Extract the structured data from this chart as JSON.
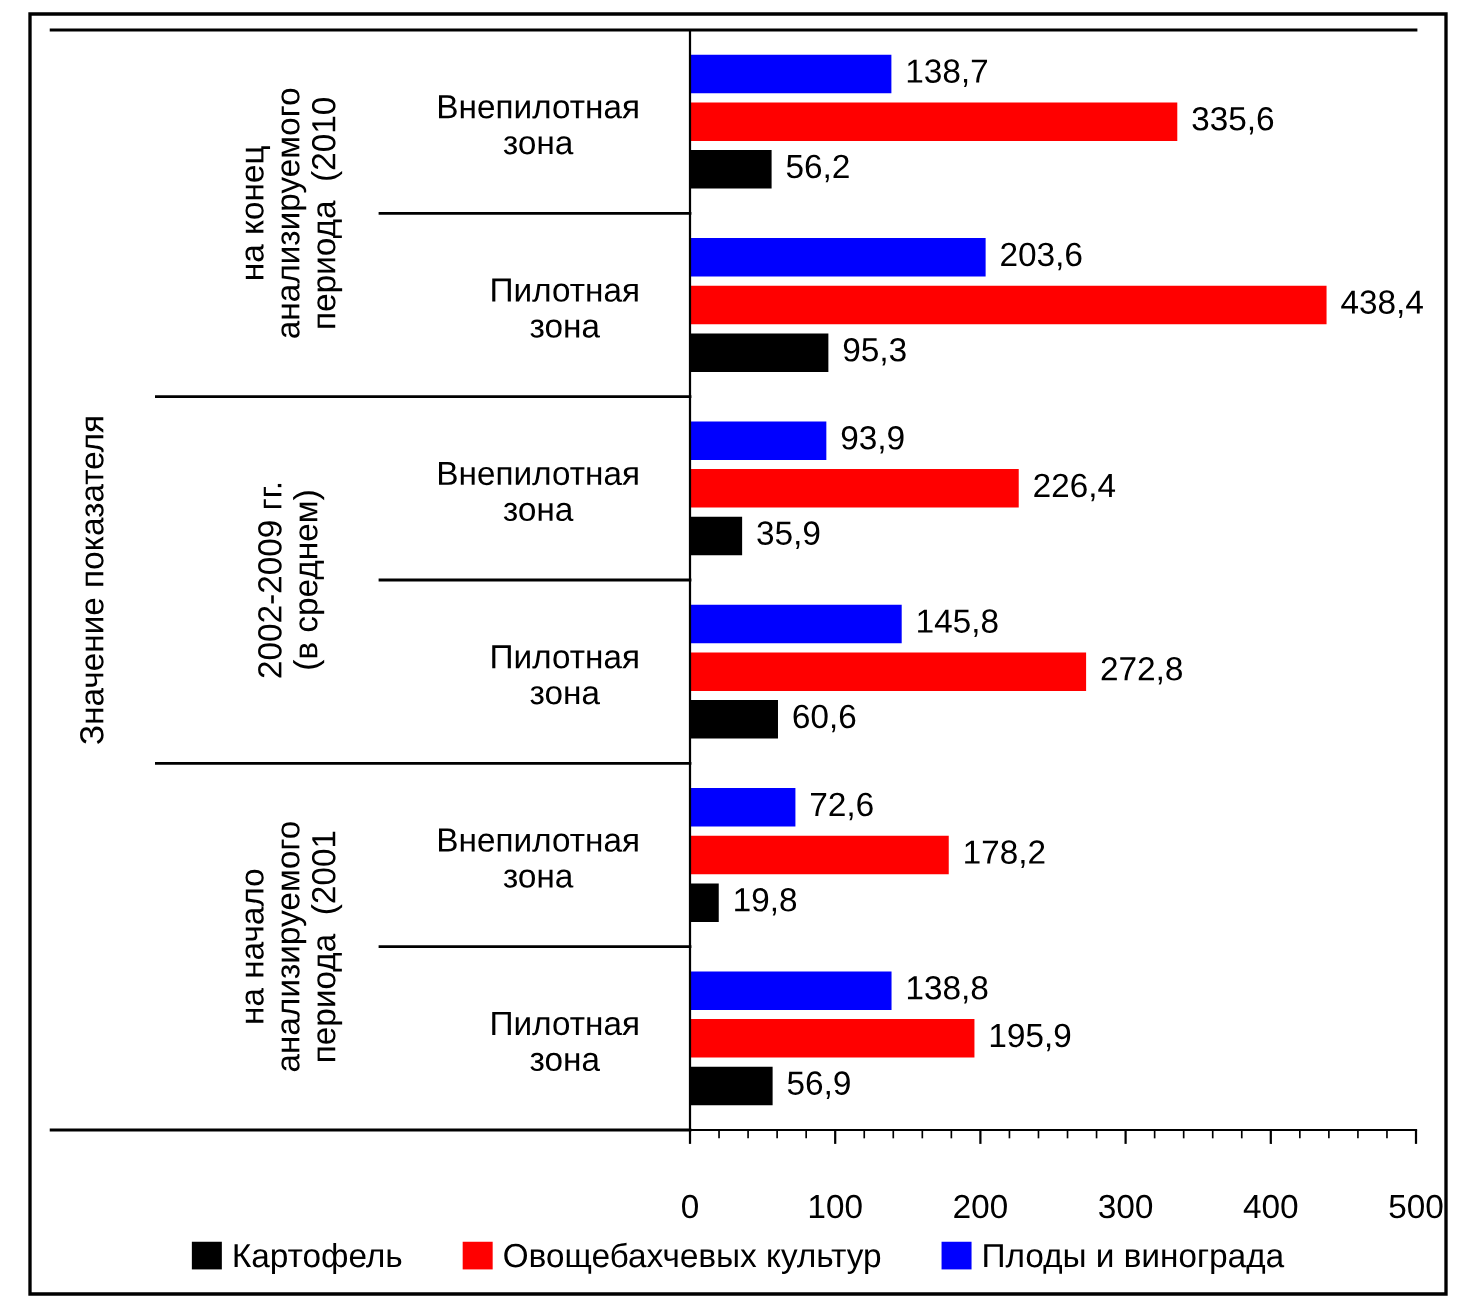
{
  "chart_data": {
    "type": "bar",
    "orientation": "horizontal",
    "categories": [
      "Внепилотная\nзона",
      "Пилотная\nзона",
      "Внепилотная\nзона",
      "Пилотная\nзона",
      "Внепилотная\nзона",
      "Пилотная\nзона"
    ],
    "annotations": [
      "на конец\nанализируемого\nпериода  (2010",
      "2002-2009 гг.\n(в среднем)",
      "на начало\nанализируемого\nпериода  (2001",
      "Значение показателя"
    ],
    "series": [
      {
        "name": "Картофель",
        "color": "#000000",
        "values": [
          56.2,
          95.3,
          35.9,
          60.6,
          19.8,
          56.9
        ],
        "value_labels": [
          "56,2",
          "95,3",
          "35,9",
          "60,6",
          "19,8",
          "56,9"
        ]
      },
      {
        "name": "Овощебахчевых культур",
        "color": "#ff0000",
        "values": [
          335.6,
          438.4,
          226.4,
          272.8,
          178.2,
          195.9
        ],
        "value_labels": [
          "335,6",
          "438,4",
          "226,4",
          "272,8",
          "178,2",
          "195,9"
        ]
      },
      {
        "name": "Плоды и винограда",
        "color": "#0000ff",
        "values": [
          138.7,
          203.6,
          93.9,
          145.8,
          72.6,
          138.8
        ],
        "value_labels": [
          "138,7",
          "203,6",
          "93,9",
          "145,8",
          "72,6",
          "138,8"
        ]
      }
    ],
    "xlim": [
      0,
      500
    ],
    "xticks": [
      0,
      100,
      200,
      300,
      400,
      500
    ],
    "grid": false,
    "legend": "bottom"
  }
}
